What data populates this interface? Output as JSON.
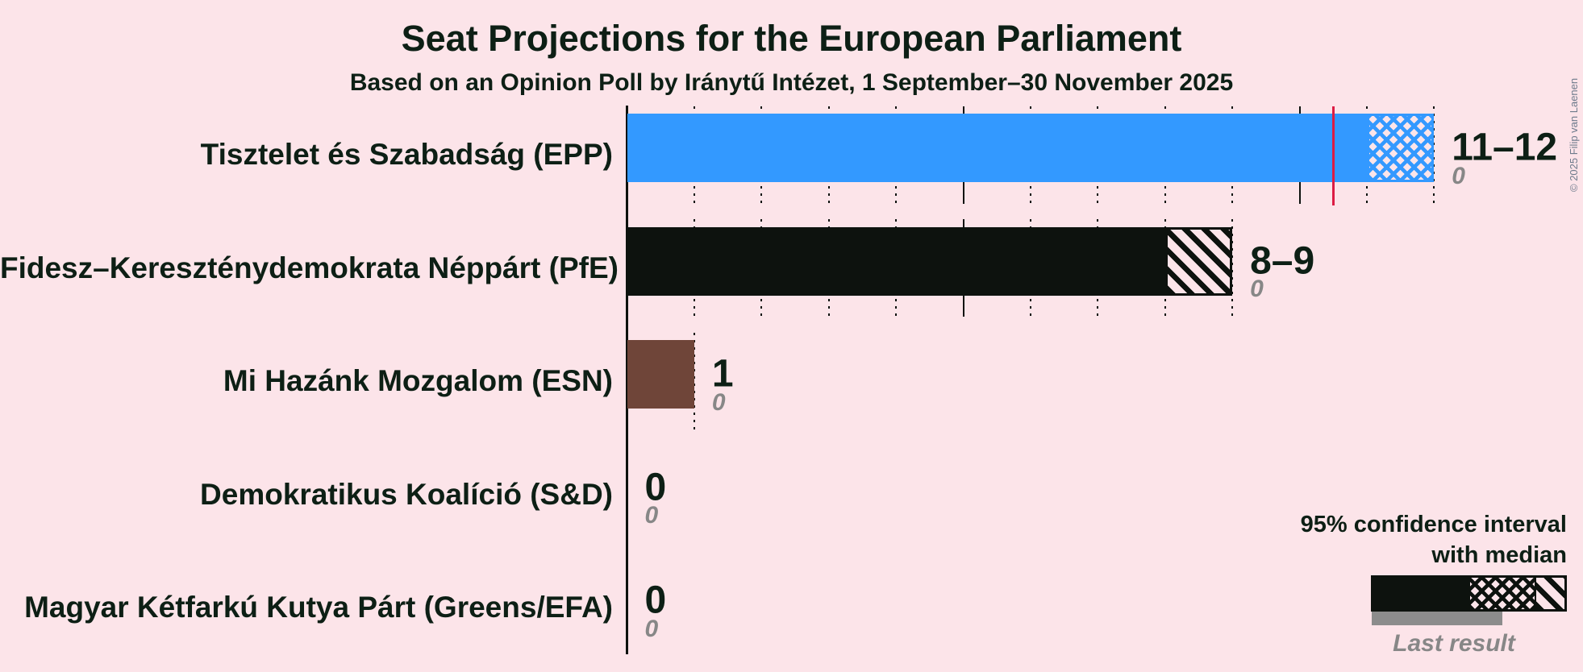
{
  "title": "Seat Projections for the European Parliament",
  "subtitle": "Based on an Opinion Poll by Iránytű Intézet, 1 September–30 November 2025",
  "copyright": "© 2025 Filip van Laenen",
  "legend": {
    "line1": "95% confidence interval",
    "line2": "with median",
    "last_result": "Last result"
  },
  "colors": {
    "background": "#fce4e9",
    "text": "#0d1f15",
    "axis": "#0d120e",
    "majority_line": "#dc1c44",
    "last_result_bar": "#8c8c8c",
    "last_result_text": "#878787",
    "copyright_text": "#6e7b8c"
  },
  "chart_data": {
    "type": "bar",
    "orientation": "horizontal",
    "unit": "seats",
    "x_axis": {
      "min": 0,
      "max": 12,
      "tick_interval": 1,
      "solid_line_interval": 5,
      "gridlines": "dotted vertical per row up to CI upper bound"
    },
    "majority_line_seats": 10.5,
    "parties": [
      {
        "name": "Tisztelet és Szabadság (EPP)",
        "color": "#3399ff",
        "ci_low": 11,
        "median": 12,
        "ci_high": 12,
        "label": "11–12",
        "last_result": 0,
        "last_result_label": "0"
      },
      {
        "name": "Fidesz–Kereszténydemokrata Néppárt (PfE)",
        "color": "#0d120e",
        "ci_low": 8,
        "median": 8,
        "ci_high": 9,
        "label": "8–9",
        "last_result": 0,
        "last_result_label": "0"
      },
      {
        "name": "Mi Hazánk Mozgalom (ESN)",
        "color": "#6f4539",
        "ci_low": 1,
        "median": 1,
        "ci_high": 1,
        "label": "1",
        "last_result": 0,
        "last_result_label": "0"
      },
      {
        "name": "Demokratikus Koalíció (S&D)",
        "ci_low": 0,
        "median": 0,
        "ci_high": 0,
        "label": "0",
        "last_result": 0,
        "last_result_label": "0"
      },
      {
        "name": "Magyar Kétfarkú Kutya Párt (Greens/EFA)",
        "ci_low": 0,
        "median": 0,
        "ci_high": 0,
        "label": "0",
        "last_result": 0,
        "last_result_label": "0"
      }
    ]
  }
}
